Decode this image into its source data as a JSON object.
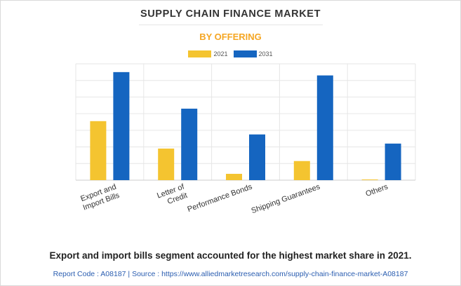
{
  "chart_data": {
    "type": "bar",
    "title": "SUPPLY CHAIN FINANCE MARKET",
    "subtitle": "BY OFFERING",
    "categories": [
      "Export and Import Bills",
      "Letter of Credit",
      "Performance Bonds",
      "Shipping Guarantees",
      "Others"
    ],
    "category_lines": [
      [
        "Export and",
        "Import Bills"
      ],
      [
        "Letter of",
        "Credit"
      ],
      [
        "Performance Bonds"
      ],
      [
        "Shipping Guarantees"
      ],
      [
        "Others"
      ]
    ],
    "series": [
      {
        "name": "2021",
        "color": "#f4c430",
        "values": [
          3.55,
          1.9,
          0.38,
          1.15,
          0.04
        ]
      },
      {
        "name": "2031",
        "color": "#1565c0",
        "values": [
          6.5,
          4.3,
          2.75,
          6.3,
          2.2
        ]
      }
    ],
    "ylim": [
      0,
      7
    ],
    "grid": true,
    "legend": "top-center"
  },
  "footer": {
    "text": "Export and import bills segment accounted for the highest market share in 2021.",
    "source": "Report Code : A08187  |  Source : https://www.alliedmarketresearch.com/supply-chain-finance-market-A08187"
  }
}
